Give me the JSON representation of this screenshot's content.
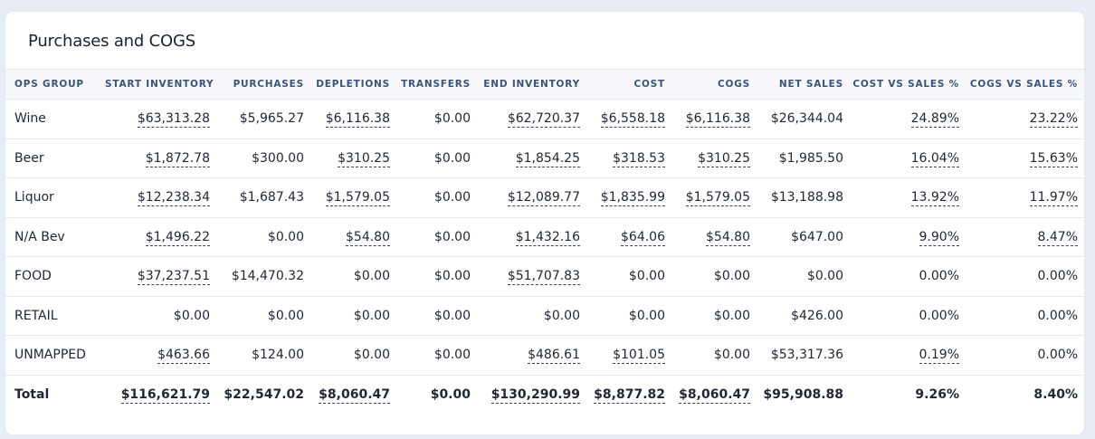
{
  "card": {
    "title": "Purchases and COGS"
  },
  "columns": [
    "OPS GROUP",
    "START INVENTORY",
    "PURCHASES",
    "DEPLETIONS",
    "TRANSFERS",
    "END INVENTORY",
    "COST",
    "COGS",
    "NET SALES",
    "COST VS SALES %",
    "COGS VS SALES %"
  ],
  "rows": [
    {
      "group": "Wine",
      "start_inventory": "$63,313.28",
      "purchases": "$5,965.27",
      "depletions": "$6,116.38",
      "transfers": "$0.00",
      "end_inventory": "$62,720.37",
      "cost": "$6,558.18",
      "cogs": "$6,116.38",
      "net_sales": "$26,344.04",
      "cost_vs_sales": "24.89%",
      "cogs_vs_sales": "23.22%"
    },
    {
      "group": "Beer",
      "start_inventory": "$1,872.78",
      "purchases": "$300.00",
      "depletions": "$310.25",
      "transfers": "$0.00",
      "end_inventory": "$1,854.25",
      "cost": "$318.53",
      "cogs": "$310.25",
      "net_sales": "$1,985.50",
      "cost_vs_sales": "16.04%",
      "cogs_vs_sales": "15.63%"
    },
    {
      "group": "Liquor",
      "start_inventory": "$12,238.34",
      "purchases": "$1,687.43",
      "depletions": "$1,579.05",
      "transfers": "$0.00",
      "end_inventory": "$12,089.77",
      "cost": "$1,835.99",
      "cogs": "$1,579.05",
      "net_sales": "$13,188.98",
      "cost_vs_sales": "13.92%",
      "cogs_vs_sales": "11.97%"
    },
    {
      "group": "N/A Bev",
      "start_inventory": "$1,496.22",
      "purchases": "$0.00",
      "depletions": "$54.80",
      "transfers": "$0.00",
      "end_inventory": "$1,432.16",
      "cost": "$64.06",
      "cogs": "$54.80",
      "net_sales": "$647.00",
      "cost_vs_sales": "9.90%",
      "cogs_vs_sales": "8.47%"
    },
    {
      "group": "FOOD",
      "start_inventory": "$37,237.51",
      "purchases": "$14,470.32",
      "depletions": "$0.00",
      "transfers": "$0.00",
      "end_inventory": "$51,707.83",
      "cost": "$0.00",
      "cogs": "$0.00",
      "net_sales": "$0.00",
      "cost_vs_sales": "0.00%",
      "cogs_vs_sales": "0.00%"
    },
    {
      "group": "RETAIL",
      "start_inventory": "$0.00",
      "purchases": "$0.00",
      "depletions": "$0.00",
      "transfers": "$0.00",
      "end_inventory": "$0.00",
      "cost": "$0.00",
      "cogs": "$0.00",
      "net_sales": "$426.00",
      "cost_vs_sales": "0.00%",
      "cogs_vs_sales": "0.00%"
    },
    {
      "group": "UNMAPPED",
      "start_inventory": "$463.66",
      "purchases": "$124.00",
      "depletions": "$0.00",
      "transfers": "$0.00",
      "end_inventory": "$486.61",
      "cost": "$101.05",
      "cogs": "$0.00",
      "net_sales": "$53,317.36",
      "cost_vs_sales": "0.19%",
      "cogs_vs_sales": "0.00%"
    }
  ],
  "total": {
    "group": "Total",
    "start_inventory": "$116,621.79",
    "purchases": "$22,547.02",
    "depletions": "$8,060.47",
    "transfers": "$0.00",
    "end_inventory": "$130,290.99",
    "cost": "$8,877.82",
    "cogs": "$8,060.47",
    "net_sales": "$95,908.88",
    "cost_vs_sales": "9.26%",
    "cogs_vs_sales": "8.40%"
  }
}
